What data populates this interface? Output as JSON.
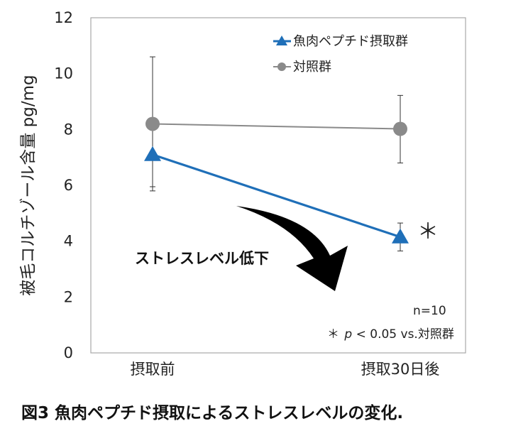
{
  "chart_data": {
    "type": "line",
    "categories": [
      "摂取前",
      "摂取30日後"
    ],
    "ylabel": "被毛コルチゾール含量 pg/mg",
    "ylim": [
      0,
      12
    ],
    "yticks": [
      0,
      2,
      4,
      6,
      8,
      10,
      12
    ],
    "grid": false,
    "legend_position": "top-right",
    "series": [
      {
        "name": "魚肉ペプチド摂取群",
        "values": [
          7.1,
          4.15
        ],
        "error_low": [
          5.95,
          3.65
        ],
        "error_high": [
          8.25,
          4.65
        ],
        "marker": "triangle",
        "color": "#1f6fb8"
      },
      {
        "name": "対照群",
        "values": [
          8.2,
          8.02
        ],
        "error_low": [
          5.8,
          6.8
        ],
        "error_high": [
          10.6,
          9.22
        ],
        "marker": "circle",
        "color": "#8a8a8a"
      }
    ],
    "annotations": {
      "significance_mark": "＊",
      "n_label": "n=10",
      "sig_prefix": "＊",
      "sig_p": "p",
      "sig_rest": "< 0.05 vs.対照群",
      "arrow_label": "ストレスレベル低下"
    }
  },
  "caption": "図3 魚肉ペプチド摂取によるストレスレベルの変化."
}
